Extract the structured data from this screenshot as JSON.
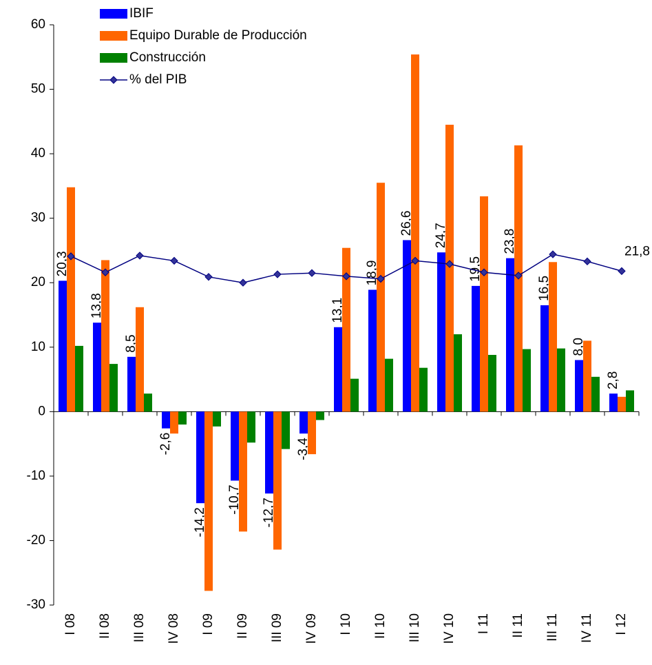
{
  "chart_data": {
    "type": "bar_line",
    "categories": [
      "I 08",
      "II 08",
      "III 08",
      "IV 08",
      "I 09",
      "II 09",
      "III 09",
      "IV 09",
      "I 10",
      "II 10",
      "III 10",
      "IV 10",
      "I 11",
      "II 11",
      "III 11",
      "IV 11",
      "I 12"
    ],
    "series": [
      {
        "name": "IBIF",
        "type": "bar",
        "color": "#0000ff",
        "values": [
          20.3,
          13.8,
          8.5,
          -2.6,
          -14.2,
          -10.7,
          -12.7,
          -3.4,
          13.1,
          18.9,
          26.6,
          24.7,
          19.5,
          23.8,
          16.5,
          8.0,
          2.8
        ],
        "value_labels": [
          "20,3",
          "13,8",
          "8,5",
          "-2,6",
          "-14,2",
          "-10,7",
          "-12,7",
          "-3,4",
          "13,1",
          "18,9",
          "26,6",
          "24,7",
          "19,5",
          "23,8",
          "16,5",
          "8,0",
          "2,8"
        ]
      },
      {
        "name": "Equipo Durable de Producción",
        "type": "bar",
        "color": "#ff6600",
        "values": [
          34.8,
          23.5,
          16.2,
          -3.4,
          -27.8,
          -18.6,
          -21.4,
          -6.6,
          25.4,
          35.5,
          55.4,
          44.5,
          33.4,
          41.3,
          23.2,
          11.0,
          2.3
        ]
      },
      {
        "name": "Construcción",
        "type": "bar",
        "color": "#008000",
        "values": [
          10.2,
          7.4,
          2.8,
          -2.0,
          -2.3,
          -4.8,
          -5.8,
          -1.3,
          5.1,
          8.2,
          6.8,
          12.0,
          8.8,
          9.7,
          9.8,
          5.4,
          3.3
        ]
      },
      {
        "name": "% del PIB",
        "type": "line",
        "color": "#000080",
        "values": [
          24.1,
          21.6,
          24.2,
          23.4,
          20.9,
          20.0,
          21.3,
          21.5,
          21.0,
          20.6,
          23.4,
          22.9,
          21.6,
          21.1,
          24.4,
          23.3,
          21.8
        ],
        "value_labels": [
          null,
          null,
          null,
          null,
          null,
          null,
          null,
          null,
          null,
          null,
          null,
          null,
          null,
          null,
          null,
          null,
          "21,8"
        ]
      }
    ],
    "ylim": [
      -30,
      60
    ],
    "yticks": [
      -30,
      -20,
      -10,
      0,
      10,
      20,
      30,
      40,
      50,
      60
    ]
  }
}
